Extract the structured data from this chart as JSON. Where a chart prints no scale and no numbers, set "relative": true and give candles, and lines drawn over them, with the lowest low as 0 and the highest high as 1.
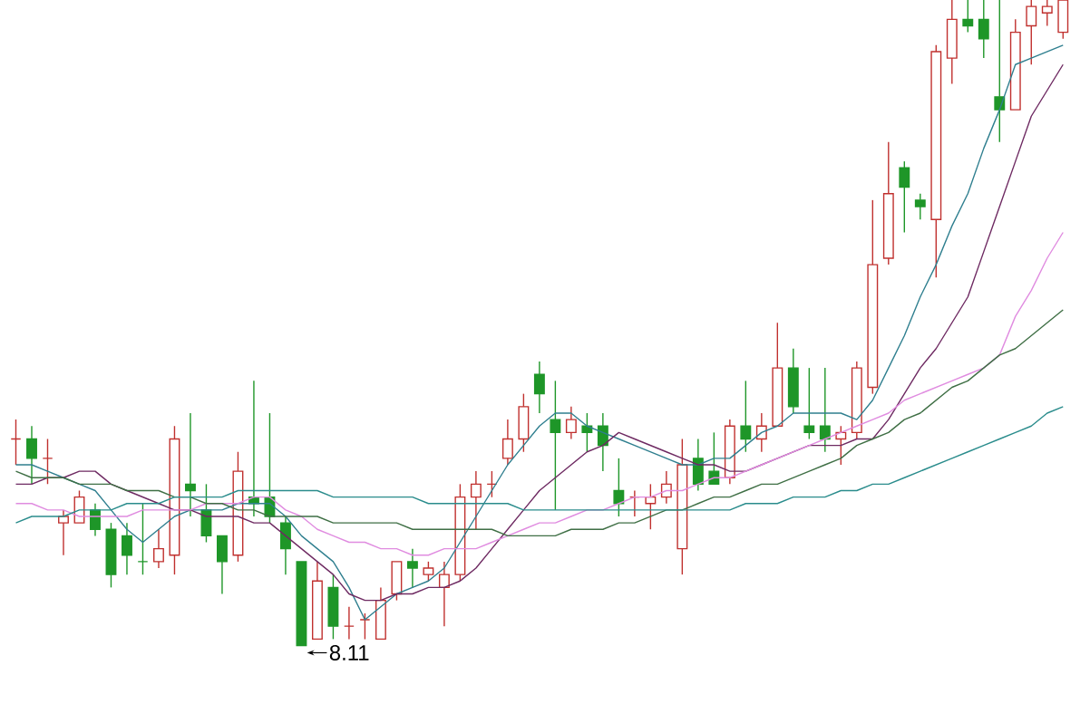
{
  "chart_data": {
    "type": "candlestick",
    "relative": true,
    "categories": [
      null,
      null,
      null,
      null,
      null,
      null,
      null,
      null,
      null,
      null,
      null,
      null,
      null,
      null,
      null,
      null,
      null,
      null,
      null,
      null,
      null,
      null,
      null,
      null,
      null,
      null,
      null,
      null,
      null,
      null,
      null,
      null,
      null,
      null,
      null,
      null,
      null,
      null,
      null,
      null,
      null,
      null,
      null,
      null,
      null,
      null,
      null,
      null,
      null,
      null,
      null,
      null,
      null,
      null,
      null,
      null,
      null,
      null,
      null,
      null,
      null,
      null,
      null,
      null,
      null,
      null,
      null
    ],
    "ohlc": [
      [
        0.32,
        0.35,
        0.28,
        0.32
      ],
      [
        0.32,
        0.34,
        0.25,
        0.29
      ],
      [
        0.29,
        0.32,
        0.25,
        0.29
      ],
      [
        0.19,
        0.21,
        0.14,
        0.2
      ],
      [
        0.19,
        0.24,
        0.19,
        0.23
      ],
      [
        0.21,
        0.22,
        0.17,
        0.18
      ],
      [
        0.18,
        0.19,
        0.09,
        0.11
      ],
      [
        0.17,
        0.19,
        0.11,
        0.14
      ],
      [
        0.13,
        0.22,
        0.11,
        0.13
      ],
      [
        0.13,
        0.18,
        0.12,
        0.15
      ],
      [
        0.14,
        0.34,
        0.11,
        0.32
      ],
      [
        0.25,
        0.36,
        0.2,
        0.24
      ],
      [
        0.21,
        0.25,
        0.16,
        0.17
      ],
      [
        0.17,
        0.17,
        0.08,
        0.13
      ],
      [
        0.14,
        0.3,
        0.13,
        0.27
      ],
      [
        0.23,
        0.41,
        0.2,
        0.22
      ],
      [
        0.23,
        0.36,
        0.19,
        0.2
      ],
      [
        0.19,
        0.2,
        0.11,
        0.15
      ],
      [
        0.13,
        0.13,
        0.0,
        0.0
      ],
      [
        0.01,
        0.13,
        0.01,
        0.1
      ],
      [
        0.09,
        0.11,
        0.01,
        0.03
      ],
      [
        0.03,
        0.06,
        0.01,
        0.03
      ],
      [
        0.04,
        0.05,
        0.01,
        0.04
      ],
      [
        0.01,
        0.09,
        0.01,
        0.07
      ],
      [
        0.08,
        0.13,
        0.07,
        0.13
      ],
      [
        0.13,
        0.15,
        0.09,
        0.12
      ],
      [
        0.11,
        0.13,
        0.1,
        0.12
      ],
      [
        0.09,
        0.13,
        0.03,
        0.11
      ],
      [
        0.11,
        0.25,
        0.1,
        0.23
      ],
      [
        0.23,
        0.27,
        0.18,
        0.25
      ],
      [
        0.25,
        0.27,
        0.23,
        0.25
      ],
      [
        0.29,
        0.35,
        0.28,
        0.32
      ],
      [
        0.32,
        0.39,
        0.3,
        0.37
      ],
      [
        0.42,
        0.44,
        0.36,
        0.39
      ],
      [
        0.35,
        0.41,
        0.21,
        0.33
      ],
      [
        0.33,
        0.37,
        0.32,
        0.35
      ],
      [
        0.34,
        0.36,
        0.3,
        0.33
      ],
      [
        0.34,
        0.36,
        0.27,
        0.31
      ],
      [
        0.24,
        0.29,
        0.2,
        0.22
      ],
      [
        0.23,
        0.24,
        0.2,
        0.23
      ],
      [
        0.22,
        0.25,
        0.18,
        0.23
      ],
      [
        0.23,
        0.27,
        0.22,
        0.25
      ],
      [
        0.15,
        0.32,
        0.11,
        0.28
      ],
      [
        0.29,
        0.32,
        0.24,
        0.25
      ],
      [
        0.27,
        0.33,
        0.25,
        0.25
      ],
      [
        0.26,
        0.35,
        0.25,
        0.34
      ],
      [
        0.34,
        0.41,
        0.3,
        0.32
      ],
      [
        0.32,
        0.36,
        0.3,
        0.34
      ],
      [
        0.34,
        0.5,
        0.34,
        0.43
      ],
      [
        0.43,
        0.46,
        0.36,
        0.37
      ],
      [
        0.34,
        0.43,
        0.32,
        0.33
      ],
      [
        0.34,
        0.43,
        0.3,
        0.32
      ],
      [
        0.32,
        0.34,
        0.28,
        0.33
      ],
      [
        0.33,
        0.44,
        0.32,
        0.43
      ],
      [
        0.4,
        0.69,
        0.39,
        0.59
      ],
      [
        0.6,
        0.78,
        0.59,
        0.7
      ],
      [
        0.74,
        0.75,
        0.64,
        0.71
      ],
      [
        0.69,
        0.7,
        0.66,
        0.68
      ],
      [
        0.66,
        0.93,
        0.57,
        0.92
      ],
      [
        0.91,
        1.0,
        0.87,
        0.97
      ],
      [
        0.97,
        1.0,
        0.95,
        0.96
      ],
      [
        0.97,
        1.0,
        0.91,
        0.94
      ],
      [
        0.85,
        1.0,
        0.78,
        0.83
      ],
      [
        0.83,
        0.97,
        0.83,
        0.95
      ],
      [
        0.96,
        1.0,
        0.9,
        0.99
      ],
      [
        0.98,
        1.0,
        0.96,
        0.99
      ],
      [
        0.95,
        1.0,
        0.94,
        1.0
      ]
    ],
    "colors": [
      "#c0302e",
      "#1e9628",
      "#c0302e",
      "#c0302e",
      "#c0302e",
      "#1e9628",
      "#1e9628",
      "#1e9628",
      "#1e9628",
      "#c0302e",
      "#c0302e",
      "#1e9628",
      "#1e9628",
      "#1e9628",
      "#c0302e",
      "#1e9628",
      "#1e9628",
      "#1e9628",
      "#1e9628",
      "#c0302e",
      "#1e9628",
      "#c0302e",
      "#c0302e",
      "#c0302e",
      "#c0302e",
      "#1e9628",
      "#c0302e",
      "#c0302e",
      "#c0302e",
      "#c0302e",
      "#c0302e",
      "#c0302e",
      "#c0302e",
      "#1e9628",
      "#1e9628",
      "#c0302e",
      "#1e9628",
      "#1e9628",
      "#1e9628",
      "#c0302e",
      "#c0302e",
      "#c0302e",
      "#c0302e",
      "#1e9628",
      "#1e9628",
      "#c0302e",
      "#1e9628",
      "#c0302e",
      "#c0302e",
      "#1e9628",
      "#1e9628",
      "#1e9628",
      "#c0302e",
      "#c0302e",
      "#c0302e",
      "#c0302e",
      "#1e9628",
      "#1e9628",
      "#c0302e",
      "#c0302e",
      "#1e9628",
      "#1e9628",
      "#1e9628",
      "#c0302e",
      "#c0302e",
      "#c0302e",
      "#c0302e"
    ],
    "series": [
      {
        "type": "line",
        "color": "#2f7f8f",
        "values": [
          0.28,
          0.28,
          0.27,
          0.26,
          0.25,
          0.24,
          0.21,
          0.18,
          0.16,
          0.18,
          0.2,
          0.21,
          0.21,
          0.21,
          0.22,
          0.22,
          0.22,
          0.2,
          0.17,
          0.15,
          0.13,
          0.09,
          0.04,
          0.06,
          0.08,
          0.09,
          0.1,
          0.12,
          0.16,
          0.2,
          0.24,
          0.28,
          0.31,
          0.34,
          0.36,
          0.36,
          0.34,
          0.33,
          0.32,
          0.31,
          0.3,
          0.29,
          0.28,
          0.28,
          0.29,
          0.29,
          0.31,
          0.33,
          0.34,
          0.36,
          0.36,
          0.36,
          0.36,
          0.35,
          0.38,
          0.43,
          0.48,
          0.54,
          0.59,
          0.65,
          0.7,
          0.77,
          0.83,
          0.9,
          0.91,
          0.92,
          0.93
        ]
      },
      {
        "type": "line",
        "color": "#6e2a62",
        "values": [
          0.25,
          0.25,
          0.26,
          0.26,
          0.27,
          0.27,
          0.25,
          0.24,
          0.23,
          0.22,
          0.21,
          0.21,
          0.2,
          0.2,
          0.2,
          0.19,
          0.19,
          0.17,
          0.15,
          0.13,
          0.11,
          0.08,
          0.07,
          0.07,
          0.08,
          0.08,
          0.09,
          0.09,
          0.1,
          0.12,
          0.15,
          0.18,
          0.21,
          0.24,
          0.26,
          0.28,
          0.3,
          0.31,
          0.33,
          0.32,
          0.31,
          0.3,
          0.29,
          0.28,
          0.28,
          0.27,
          0.27,
          0.28,
          0.29,
          0.3,
          0.31,
          0.31,
          0.31,
          0.32,
          0.32,
          0.35,
          0.39,
          0.43,
          0.46,
          0.5,
          0.54,
          0.61,
          0.68,
          0.75,
          0.82,
          0.86,
          0.9
        ]
      },
      {
        "type": "line",
        "color": "#e08ce0",
        "values": [
          0.22,
          0.22,
          0.21,
          0.21,
          0.2,
          0.2,
          0.2,
          0.2,
          0.21,
          0.21,
          0.21,
          0.21,
          0.22,
          0.22,
          0.22,
          0.23,
          0.23,
          0.21,
          0.2,
          0.18,
          0.17,
          0.16,
          0.16,
          0.15,
          0.15,
          0.14,
          0.14,
          0.15,
          0.15,
          0.15,
          0.16,
          0.17,
          0.18,
          0.19,
          0.19,
          0.2,
          0.21,
          0.21,
          0.22,
          0.23,
          0.23,
          0.24,
          0.24,
          0.25,
          0.26,
          0.26,
          0.27,
          0.28,
          0.29,
          0.3,
          0.31,
          0.32,
          0.33,
          0.34,
          0.35,
          0.36,
          0.38,
          0.39,
          0.4,
          0.41,
          0.42,
          0.43,
          0.45,
          0.51,
          0.55,
          0.6,
          0.64
        ]
      },
      {
        "type": "line",
        "color": "#3f6f45",
        "values": [
          0.27,
          0.26,
          0.26,
          0.26,
          0.25,
          0.25,
          0.25,
          0.24,
          0.24,
          0.24,
          0.23,
          0.23,
          0.22,
          0.22,
          0.21,
          0.21,
          0.2,
          0.2,
          0.2,
          0.2,
          0.19,
          0.19,
          0.19,
          0.19,
          0.19,
          0.18,
          0.18,
          0.18,
          0.18,
          0.18,
          0.18,
          0.17,
          0.17,
          0.17,
          0.17,
          0.18,
          0.18,
          0.18,
          0.19,
          0.19,
          0.2,
          0.21,
          0.21,
          0.22,
          0.23,
          0.23,
          0.24,
          0.25,
          0.25,
          0.26,
          0.27,
          0.28,
          0.29,
          0.31,
          0.32,
          0.33,
          0.35,
          0.36,
          0.38,
          0.4,
          0.41,
          0.43,
          0.45,
          0.46,
          0.48,
          0.5,
          0.52
        ]
      },
      {
        "type": "line",
        "color": "#2a8c8c",
        "values": [
          0.19,
          0.2,
          0.2,
          0.2,
          0.21,
          0.21,
          0.21,
          0.22,
          0.22,
          0.22,
          0.23,
          0.23,
          0.23,
          0.23,
          0.24,
          0.24,
          0.24,
          0.24,
          0.24,
          0.24,
          0.23,
          0.23,
          0.23,
          0.23,
          0.23,
          0.23,
          0.22,
          0.22,
          0.22,
          0.22,
          0.22,
          0.22,
          0.21,
          0.21,
          0.21,
          0.21,
          0.21,
          0.21,
          0.21,
          0.21,
          0.21,
          0.21,
          0.21,
          0.21,
          0.21,
          0.21,
          0.22,
          0.22,
          0.22,
          0.23,
          0.23,
          0.23,
          0.24,
          0.24,
          0.25,
          0.25,
          0.26,
          0.27,
          0.28,
          0.29,
          0.3,
          0.31,
          0.32,
          0.33,
          0.34,
          0.36,
          0.37
        ]
      }
    ],
    "annotations": [
      {
        "text": "8.11",
        "y": 0
      }
    ]
  }
}
